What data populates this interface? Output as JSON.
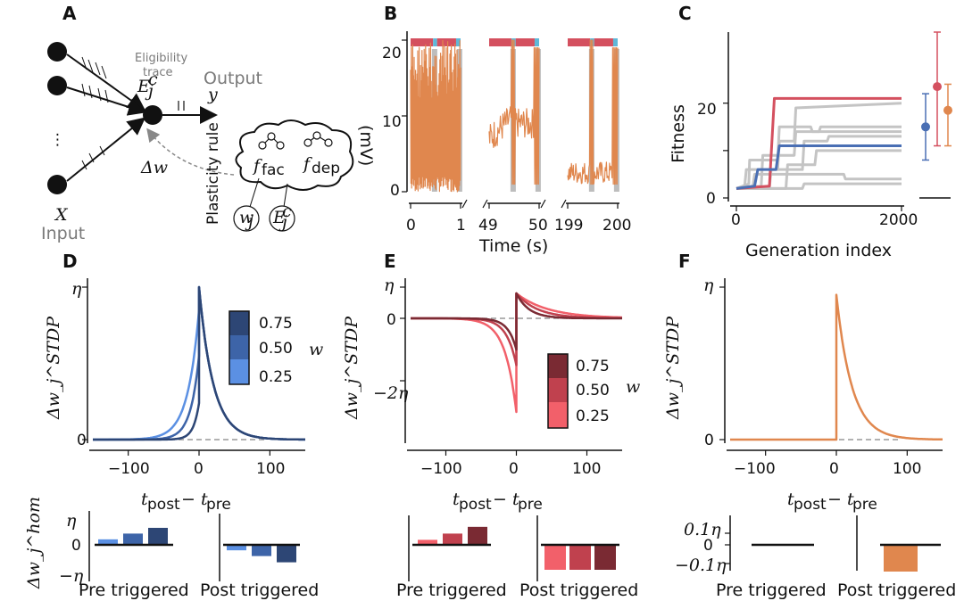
{
  "panels": {
    "A": "A",
    "B": "B",
    "C": "C",
    "D": "D",
    "E": "E",
    "F": "F"
  },
  "colors": {
    "orange": "#e0874e",
    "red": "#d4505f",
    "blue": "#4a6fb4",
    "gray": "#c4c4c4",
    "cyan": "#5fb8d8",
    "dark": "#222222",
    "blue_shades": [
      "#2d4675",
      "#3d64a8",
      "#5b90e3"
    ],
    "red_shades": [
      "#7a2a33",
      "#c0414e",
      "#f2606a"
    ]
  },
  "diagram": {
    "eligibility_line1": "Eligibility",
    "eligibility_line2": "trace",
    "eligibility_symbol": "E",
    "eligibility_sup": "c",
    "eligibility_sub": "j",
    "output_label": "Output",
    "output_symbol": "y",
    "input_symbol": "X",
    "input_label": "Input",
    "delta_w": "Δw",
    "plasticity_rule": "Plasticity rule",
    "f_fac": "f",
    "f_fac_sub": "fac",
    "f_dep": "f",
    "f_dep_sub": "dep",
    "w_j": "w",
    "w_j_sub": "j",
    "E_j": "E",
    "E_j_sup": "c",
    "E_j_sub": "j",
    "dots": "⋮"
  },
  "chart_data": [
    {
      "id": "B",
      "type": "line",
      "xlabel": "Time (s)",
      "ylabel": "(mV)",
      "ylim": [
        0,
        20
      ],
      "yticks": [
        "0",
        "10",
        "20"
      ],
      "segments": [
        {
          "xticks": [
            "0",
            "1"
          ],
          "range": [
            0,
            1
          ]
        },
        {
          "xticks": [
            "49",
            "50"
          ],
          "range": [
            49,
            50
          ]
        },
        {
          "xticks": [
            "199",
            "200"
          ],
          "range": [
            199,
            200
          ]
        }
      ],
      "series": [
        {
          "name": "membrane voltage"
        }
      ]
    },
    {
      "id": "C",
      "type": "line",
      "xlabel": "Generation index",
      "ylabel": "Fitness",
      "xlim": [
        0,
        2000
      ],
      "ylim": [
        0,
        35
      ],
      "xticks": [
        "0",
        "2000"
      ],
      "yticks": [
        "0",
        "10",
        "20"
      ],
      "series": [
        {
          "name": "red run",
          "points": [
            [
              0,
              2
            ],
            [
              400,
              2.5
            ],
            [
              460,
              21
            ],
            [
              2000,
              21
            ]
          ]
        },
        {
          "name": "blue run",
          "points": [
            [
              0,
              2
            ],
            [
              220,
              2.5
            ],
            [
              260,
              6
            ],
            [
              480,
              6
            ],
            [
              520,
              11
            ],
            [
              2000,
              11
            ]
          ]
        }
      ],
      "error_bars": [
        {
          "name": "blue",
          "mean": 15,
          "low": 8,
          "high": 22
        },
        {
          "name": "red",
          "mean": 23.5,
          "low": 11,
          "high": 35
        },
        {
          "name": "orange",
          "mean": 18.5,
          "low": 11,
          "high": 24
        }
      ]
    },
    {
      "id": "D",
      "type": "line",
      "xlabel": "t_post − t_pre",
      "xlabel_parts": [
        "t",
        "post",
        "− t",
        "pre"
      ],
      "ylabel": "Δw_j^STDP",
      "xlim": [
        -150,
        150
      ],
      "xticks": [
        "−100",
        "0",
        "100"
      ],
      "yticks": [
        "0",
        "η"
      ],
      "legend": {
        "title": "w",
        "entries": [
          "0.75",
          "0.50",
          "0.25"
        ]
      },
      "series": [
        {
          "name": "w=0.75",
          "peak": 1.0,
          "pre_amp": 0.24,
          "tau_pre": 8,
          "tau_post": 20
        },
        {
          "name": "w=0.50",
          "peak": 1.0,
          "pre_amp": 0.55,
          "tau_pre": 12,
          "tau_post": 20
        },
        {
          "name": "w=0.25",
          "peak": 1.0,
          "pre_amp": 0.85,
          "tau_pre": 16,
          "tau_post": 20
        }
      ],
      "hom": {
        "ylabel": "Δw_j^hom",
        "yticks": [
          "η",
          "0",
          "−η"
        ],
        "pre_label": "Pre triggered",
        "post_label": "Post triggered",
        "pre_values": [
          0.22,
          0.45,
          0.68
        ],
        "post_values": [
          -0.22,
          -0.45,
          -0.7
        ]
      }
    },
    {
      "id": "E",
      "type": "line",
      "xlabel": "t_post − t_pre",
      "ylabel": "Δw_j^STDP",
      "xlim": [
        -150,
        150
      ],
      "xticks": [
        "−100",
        "0",
        "100"
      ],
      "yticks": [
        "η",
        "0",
        "−2η"
      ],
      "legend": {
        "title": "w",
        "entries": [
          "0.75",
          "0.50",
          "0.25"
        ]
      },
      "series": [
        {
          "name": "w=0.75",
          "neg": -1.0,
          "pos": 0.8,
          "tau_neg": 12,
          "tau_post": 18
        },
        {
          "name": "w=0.50",
          "neg": -1.5,
          "pos": 0.8,
          "tau_neg": 14,
          "tau_post": 30
        },
        {
          "name": "w=0.25",
          "neg": -3.0,
          "pos": 0.8,
          "tau_neg": 16,
          "tau_post": 45
        }
      ],
      "hom": {
        "pre_label": "Pre triggered",
        "post_label": "Post triggered",
        "pre_values": [
          0.2,
          0.45,
          0.72
        ],
        "post_values": [
          -0.7,
          -0.7,
          -0.7
        ]
      }
    },
    {
      "id": "F",
      "type": "line",
      "xlabel": "t_post − t_pre",
      "ylabel": "Δw_j^STDP",
      "xlim": [
        -150,
        150
      ],
      "xticks": [
        "−100",
        "0",
        "100"
      ],
      "yticks": [
        "0",
        "η"
      ],
      "series": [
        {
          "name": "orange",
          "peak": 0.95,
          "tau_post": 22
        }
      ],
      "hom": {
        "yticks": [
          "0.1η",
          "0",
          "−0.1η"
        ],
        "pre_label": "Pre triggered",
        "post_label": "Post triggered",
        "pre_values": [
          0
        ],
        "post_values": [
          -0.1
        ]
      }
    }
  ]
}
